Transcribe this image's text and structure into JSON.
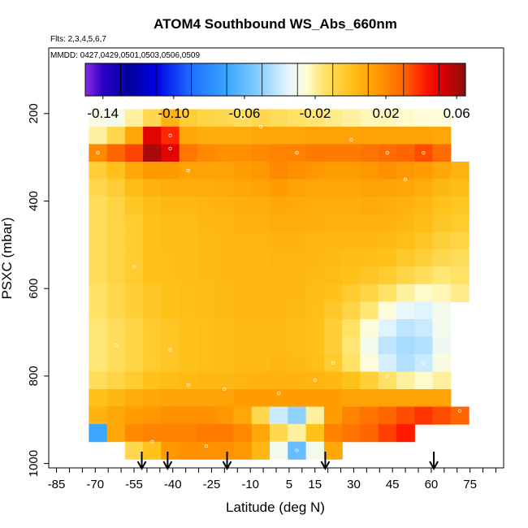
{
  "chart_data": {
    "type": "heatmap",
    "title": "ATOM4 Southbound WS_Abs_660nm",
    "subtitle_flights": "Flts: 2,3,4,5,6,7",
    "subtitle_dates": "MMDD: 0427,0429,0501,0503,0506,0509",
    "xlabel": "Latitude (deg N)",
    "ylabel": "PSXC (mbar)",
    "xlim": [
      -88,
      88
    ],
    "ylim": [
      1010,
      50
    ],
    "x_ticks": [
      -85,
      -70,
      -55,
      -40,
      -25,
      -10,
      5,
      15,
      30,
      45,
      60,
      75
    ],
    "x_minor_step": 5,
    "y_ticks": [
      200,
      400,
      600,
      800,
      1000
    ],
    "colorbar": {
      "min": -0.15,
      "max": 0.065,
      "ticks": [
        -0.14,
        -0.1,
        -0.06,
        -0.02,
        0.02,
        0.06
      ],
      "tick_labels": [
        "-0.14",
        "-0.10",
        "-0.06",
        "-0.02",
        "0.02",
        "0.06"
      ],
      "divisions": [
        -0.13,
        -0.11,
        -0.09,
        -0.07,
        -0.05,
        -0.03,
        -0.01,
        0.01,
        0.03,
        0.05
      ],
      "color_stops": [
        {
          "v": -0.15,
          "c": "#8a2be2"
        },
        {
          "v": -0.14,
          "c": "#2b00c8"
        },
        {
          "v": -0.125,
          "c": "#00009a"
        },
        {
          "v": -0.11,
          "c": "#0000e6"
        },
        {
          "v": -0.09,
          "c": "#1f6fff"
        },
        {
          "v": -0.07,
          "c": "#3aa6ff"
        },
        {
          "v": -0.05,
          "c": "#8fd2ff"
        },
        {
          "v": -0.035,
          "c": "#e6f6ff"
        },
        {
          "v": -0.025,
          "c": "#fffdd6"
        },
        {
          "v": -0.015,
          "c": "#ffe36a"
        },
        {
          "v": 0.0,
          "c": "#ffc21a"
        },
        {
          "v": 0.015,
          "c": "#ff9a00"
        },
        {
          "v": 0.03,
          "c": "#ff6600"
        },
        {
          "v": 0.042,
          "c": "#ff1a00"
        },
        {
          "v": 0.052,
          "c": "#d80000"
        },
        {
          "v": 0.065,
          "c": "#8b1010"
        }
      ]
    },
    "grid_pressure_mbar": [
      170,
      210,
      250,
      290,
      330,
      370,
      410,
      450,
      490,
      530,
      570,
      610,
      650,
      690,
      730,
      770,
      810,
      850,
      890,
      930,
      970
    ],
    "grid_latitude_deg": [
      -69,
      -62,
      -55,
      -48,
      -41,
      -34,
      -27,
      -20,
      -13,
      -6,
      1,
      8,
      15,
      22,
      29,
      36,
      43,
      50,
      57,
      64,
      71
    ],
    "values": [
      [
        null,
        null,
        null,
        null,
        null,
        null,
        null,
        null,
        null,
        null,
        null,
        null,
        null,
        null,
        null,
        null,
        null,
        null,
        null,
        null,
        null
      ],
      [
        -0.028,
        -0.03,
        -0.02,
        -0.01,
        0.005,
        -0.005,
        -0.008,
        -0.01,
        -0.012,
        -0.01,
        -0.012,
        -0.014,
        -0.016,
        -0.018,
        -0.02,
        -0.022,
        -0.022,
        -0.024,
        -0.025,
        -0.026,
        null
      ],
      [
        -0.02,
        -0.01,
        0.01,
        0.05,
        0.04,
        0.01,
        0.008,
        0.008,
        0.008,
        0.01,
        0.01,
        0.01,
        0.012,
        0.012,
        0.012,
        0.012,
        0.012,
        0.012,
        0.012,
        0.01,
        null
      ],
      [
        0.02,
        0.03,
        0.035,
        0.06,
        0.05,
        0.025,
        0.02,
        0.018,
        0.018,
        0.02,
        0.022,
        0.022,
        0.024,
        0.024,
        0.024,
        0.026,
        0.028,
        0.03,
        0.034,
        0.028,
        null
      ],
      [
        -0.005,
        0.0,
        0.01,
        0.015,
        0.015,
        0.012,
        0.012,
        0.012,
        0.014,
        0.016,
        0.02,
        0.018,
        0.016,
        0.014,
        0.014,
        0.016,
        0.018,
        0.016,
        0.014,
        0.01,
        0.006
      ],
      [
        -0.01,
        -0.005,
        0.002,
        0.006,
        0.008,
        0.008,
        0.008,
        0.009,
        0.01,
        0.012,
        0.014,
        0.012,
        0.01,
        0.01,
        0.01,
        0.012,
        0.012,
        0.01,
        0.008,
        0.004,
        0.002
      ],
      [
        -0.012,
        -0.008,
        -0.002,
        0.002,
        0.004,
        0.004,
        0.005,
        0.006,
        0.007,
        0.008,
        0.01,
        0.009,
        0.008,
        0.008,
        0.008,
        0.009,
        0.008,
        0.006,
        0.004,
        0.0,
        -0.002
      ],
      [
        -0.012,
        -0.008,
        -0.004,
        0.0,
        0.002,
        0.002,
        0.004,
        0.005,
        0.006,
        0.006,
        0.008,
        0.008,
        0.007,
        0.006,
        0.006,
        0.006,
        0.006,
        0.004,
        0.002,
        -0.002,
        -0.004
      ],
      [
        -0.012,
        -0.008,
        -0.004,
        0.0,
        0.002,
        0.002,
        0.003,
        0.004,
        0.005,
        0.005,
        0.006,
        0.006,
        0.005,
        0.004,
        0.004,
        0.004,
        0.003,
        0.001,
        -0.002,
        -0.006,
        -0.008
      ],
      [
        -0.012,
        -0.008,
        -0.004,
        0.0,
        0.001,
        0.002,
        0.003,
        0.004,
        0.004,
        0.004,
        0.005,
        0.005,
        0.004,
        0.003,
        0.002,
        0.001,
        0.0,
        -0.003,
        -0.006,
        -0.01,
        -0.012
      ],
      [
        -0.012,
        -0.008,
        -0.004,
        0.0,
        0.001,
        0.002,
        0.003,
        0.004,
        0.004,
        0.004,
        0.004,
        0.004,
        0.003,
        0.002,
        0.0,
        -0.002,
        -0.004,
        -0.008,
        -0.012,
        -0.016,
        -0.014
      ],
      [
        -0.014,
        -0.01,
        -0.006,
        -0.002,
        0.0,
        0.001,
        0.002,
        0.003,
        0.004,
        0.004,
        0.004,
        0.004,
        0.002,
        0.0,
        -0.004,
        -0.008,
        -0.014,
        -0.02,
        -0.024,
        -0.022,
        -0.018
      ],
      [
        -0.014,
        -0.01,
        -0.006,
        -0.002,
        0.0,
        0.001,
        0.002,
        0.003,
        0.004,
        0.004,
        0.004,
        0.003,
        0.001,
        -0.003,
        -0.008,
        -0.016,
        -0.026,
        -0.034,
        -0.036,
        -0.03,
        null
      ],
      [
        -0.016,
        -0.012,
        -0.008,
        -0.004,
        -0.002,
        0.0,
        0.001,
        0.002,
        0.003,
        0.003,
        0.003,
        0.002,
        0.0,
        -0.006,
        -0.014,
        -0.026,
        -0.036,
        -0.042,
        -0.04,
        -0.03,
        null
      ],
      [
        -0.016,
        -0.012,
        -0.008,
        -0.004,
        -0.002,
        0.0,
        0.001,
        0.002,
        0.003,
        0.003,
        0.003,
        0.002,
        0.0,
        -0.006,
        -0.016,
        -0.03,
        -0.042,
        -0.046,
        -0.044,
        -0.032,
        null
      ],
      [
        -0.016,
        -0.012,
        -0.008,
        -0.004,
        -0.002,
        0.0,
        0.001,
        0.002,
        0.003,
        0.003,
        0.004,
        0.003,
        0.001,
        -0.004,
        -0.014,
        -0.026,
        -0.038,
        -0.044,
        -0.04,
        -0.028,
        null
      ],
      [
        -0.012,
        -0.008,
        -0.004,
        0.0,
        0.002,
        0.003,
        0.004,
        0.004,
        0.005,
        0.006,
        0.006,
        0.006,
        0.005,
        0.004,
        0.0,
        -0.006,
        -0.014,
        -0.02,
        -0.024,
        -0.02,
        null
      ],
      [
        0.0,
        0.004,
        0.008,
        0.01,
        0.012,
        0.012,
        0.012,
        0.012,
        0.014,
        0.014,
        0.014,
        0.014,
        0.014,
        0.014,
        0.012,
        0.012,
        0.012,
        0.012,
        0.012,
        0.012,
        null
      ],
      [
        0.006,
        0.01,
        0.014,
        0.016,
        0.018,
        0.018,
        0.018,
        0.016,
        0.01,
        -0.01,
        -0.04,
        -0.05,
        -0.02,
        0.014,
        0.022,
        0.026,
        0.03,
        0.034,
        0.038,
        0.034,
        0.03
      ],
      [
        -0.07,
        0.01,
        0.02,
        0.022,
        0.022,
        0.022,
        0.024,
        0.024,
        0.02,
        0.01,
        -0.01,
        -0.02,
        0.0,
        0.022,
        0.026,
        0.03,
        0.036,
        0.042,
        null,
        null,
        null
      ],
      [
        null,
        null,
        -0.01,
        0.0,
        0.016,
        0.018,
        0.018,
        0.018,
        0.016,
        0.004,
        -0.03,
        -0.06,
        -0.03,
        0.01,
        null,
        null,
        null,
        null,
        null,
        null,
        null
      ]
    ],
    "arrow_latitudes": [
      -52,
      -42,
      -19,
      19,
      61
    ]
  }
}
